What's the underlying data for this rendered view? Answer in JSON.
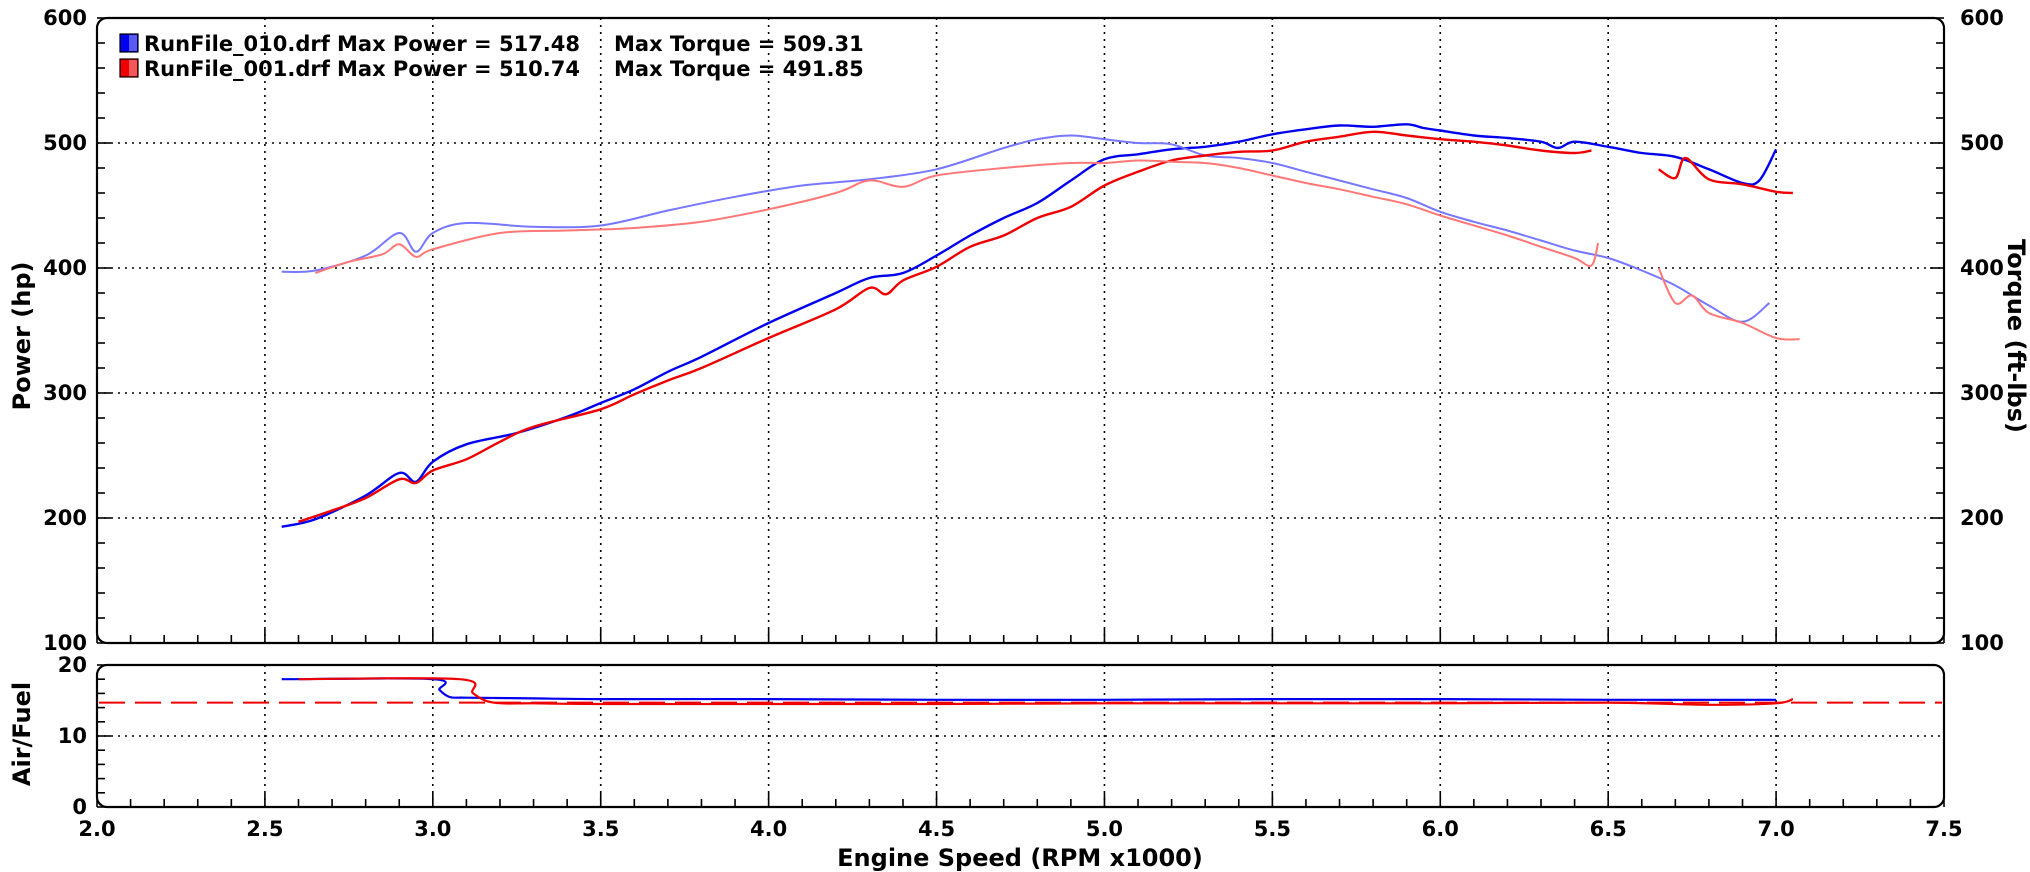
{
  "chart_data": [
    {
      "type": "line",
      "title": "",
      "xlabel": "Engine Speed (RPM x1000)",
      "ylabel": "Power (hp)",
      "y2label": "Torque (ft-lbs)",
      "xlim": [
        2.0,
        7.5
      ],
      "ylim": [
        100,
        600
      ],
      "y2lim": [
        100,
        600
      ],
      "x_ticks": [
        "2.0",
        "2.5",
        "3.0",
        "3.5",
        "4.0",
        "4.5",
        "5.0",
        "5.5",
        "6.0",
        "6.5",
        "7.0",
        "7.5"
      ],
      "y_ticks": [
        "100",
        "200",
        "300",
        "400",
        "500",
        "600"
      ],
      "y2_ticks": [
        "100",
        "200",
        "300",
        "400",
        "500",
        "600"
      ],
      "grid": true,
      "legend_position": "top-left",
      "legend": [
        {
          "file": "RunFile_010.drf",
          "power_text": "Max Power = 517.48",
          "torque_text": "Max Torque = 509.31",
          "color": "#0000ee"
        },
        {
          "file": "RunFile_001.drf",
          "power_text": "Max Power = 510.74",
          "torque_text": "Max Torque = 491.85",
          "color": "#ee0000"
        }
      ],
      "series": [
        {
          "name": "RunFile_010.drf",
          "kind": "power",
          "color": "#0000ee",
          "x": [
            2.55,
            2.65,
            2.8,
            2.9,
            2.95,
            3.0,
            3.1,
            3.25,
            3.4,
            3.5,
            3.6,
            3.7,
            3.8,
            4.0,
            4.2,
            4.3,
            4.4,
            4.5,
            4.6,
            4.7,
            4.8,
            4.9,
            5.0,
            5.1,
            5.2,
            5.3,
            5.4,
            5.5,
            5.6,
            5.7,
            5.8,
            5.9,
            5.95,
            6.0,
            6.1,
            6.2,
            6.3,
            6.35,
            6.4,
            6.5,
            6.6,
            6.7,
            6.8,
            6.9,
            6.95,
            7.0
          ],
          "y": [
            193,
            199,
            218,
            236,
            229,
            245,
            259,
            268,
            281,
            292,
            303,
            317,
            329,
            356,
            380,
            392,
            396,
            410,
            426,
            440,
            452,
            470,
            487,
            491,
            495,
            497,
            501,
            507,
            511,
            514,
            513,
            515,
            512,
            510,
            506,
            504,
            501,
            496,
            501,
            497,
            492,
            489,
            479,
            468,
            470,
            495
          ]
        },
        {
          "name": "RunFile_010.drf",
          "kind": "torque",
          "color": "#7777ff",
          "x": [
            2.55,
            2.65,
            2.8,
            2.9,
            2.95,
            3.0,
            3.1,
            3.3,
            3.5,
            3.7,
            3.9,
            4.1,
            4.3,
            4.5,
            4.7,
            4.8,
            4.9,
            5.0,
            5.1,
            5.2,
            5.3,
            5.4,
            5.5,
            5.6,
            5.7,
            5.8,
            5.9,
            6.0,
            6.1,
            6.2,
            6.3,
            6.4,
            6.5,
            6.6,
            6.7,
            6.8,
            6.9,
            6.98
          ],
          "y": [
            397,
            398,
            410,
            428,
            413,
            428,
            436,
            433,
            434,
            446,
            457,
            466,
            471,
            479,
            496,
            503,
            506,
            503,
            500,
            499,
            490,
            488,
            484,
            477,
            470,
            463,
            456,
            445,
            437,
            430,
            422,
            414,
            408,
            398,
            386,
            370,
            357,
            372
          ]
        },
        {
          "name": "RunFile_001.drf",
          "kind": "power",
          "color": "#ee0000",
          "x": [
            2.6,
            2.7,
            2.8,
            2.9,
            2.95,
            3.0,
            3.1,
            3.2,
            3.3,
            3.5,
            3.6,
            3.7,
            3.8,
            4.0,
            4.2,
            4.3,
            4.35,
            4.4,
            4.5,
            4.6,
            4.7,
            4.8,
            4.9,
            5.0,
            5.1,
            5.2,
            5.3,
            5.4,
            5.5,
            5.6,
            5.7,
            5.8,
            5.9,
            6.0,
            6.1,
            6.2,
            6.3,
            6.4,
            6.45
          ],
          "y": [
            197,
            206,
            216,
            231,
            228,
            238,
            247,
            261,
            273,
            287,
            299,
            310,
            320,
            344,
            367,
            384,
            379,
            390,
            401,
            417,
            426,
            440,
            449,
            466,
            477,
            486,
            490,
            493,
            494,
            501,
            505,
            509,
            506,
            503,
            501,
            498,
            494,
            492,
            494
          ]
        },
        {
          "name": "RunFile_001.drf",
          "kind": "power",
          "color": "#ee0000",
          "x": [
            6.65,
            6.7,
            6.73,
            6.8,
            6.9,
            7.0,
            7.05
          ],
          "y": [
            479,
            472,
            488,
            471,
            467,
            461,
            460
          ]
        },
        {
          "name": "RunFile_001.drf",
          "kind": "torque",
          "color": "#ff7777",
          "x": [
            2.65,
            2.75,
            2.85,
            2.9,
            2.95,
            3.0,
            3.2,
            3.4,
            3.6,
            3.8,
            4.0,
            4.2,
            4.3,
            4.4,
            4.5,
            4.7,
            4.9,
            5.0,
            5.1,
            5.2,
            5.3,
            5.4,
            5.5,
            5.6,
            5.7,
            5.8,
            5.9,
            6.0,
            6.1,
            6.2,
            6.3,
            6.4,
            6.45,
            6.47
          ],
          "y": [
            396,
            405,
            411,
            419,
            409,
            415,
            428,
            430,
            432,
            437,
            447,
            460,
            470,
            465,
            474,
            480,
            484,
            484,
            486,
            485,
            484,
            480,
            474,
            468,
            463,
            457,
            451,
            442,
            434,
            426,
            417,
            408,
            402,
            420
          ]
        },
        {
          "name": "RunFile_001.drf",
          "kind": "torque",
          "color": "#ff7777",
          "x": [
            6.65,
            6.7,
            6.75,
            6.8,
            6.9,
            7.0,
            7.07
          ],
          "y": [
            400,
            372,
            378,
            364,
            356,
            344,
            343
          ]
        }
      ]
    },
    {
      "type": "line",
      "title": "",
      "xlabel": "Engine Speed (RPM x1000)",
      "ylabel": "Air/Fuel",
      "xlim": [
        2.0,
        7.5
      ],
      "ylim": [
        0,
        20
      ],
      "y_ticks": [
        "0",
        "10",
        "20"
      ],
      "reference_line": {
        "y": 14.7,
        "style": "dashed",
        "color": "#ee0000"
      },
      "series": [
        {
          "name": "RunFile_010.drf",
          "color": "#0000ee",
          "x": [
            2.55,
            3.0,
            3.02,
            3.05,
            3.1,
            3.3,
            3.5,
            4.0,
            4.5,
            5.0,
            5.5,
            6.0,
            6.5,
            7.0
          ],
          "y": [
            18.0,
            18.0,
            16.5,
            15.5,
            15.4,
            15.3,
            15.2,
            15.2,
            15.1,
            15.1,
            15.2,
            15.2,
            15.1,
            15.1
          ]
        },
        {
          "name": "RunFile_001.drf",
          "color": "#ee0000",
          "x": [
            2.6,
            3.08,
            3.12,
            3.18,
            3.3,
            3.5,
            4.0,
            4.5,
            5.0,
            5.5,
            6.0,
            6.5,
            6.8,
            7.0,
            7.05
          ],
          "y": [
            18.0,
            18.0,
            16.0,
            14.7,
            14.6,
            14.5,
            14.5,
            14.5,
            14.6,
            14.6,
            14.6,
            14.7,
            14.4,
            14.6,
            15.2
          ]
        }
      ]
    }
  ]
}
